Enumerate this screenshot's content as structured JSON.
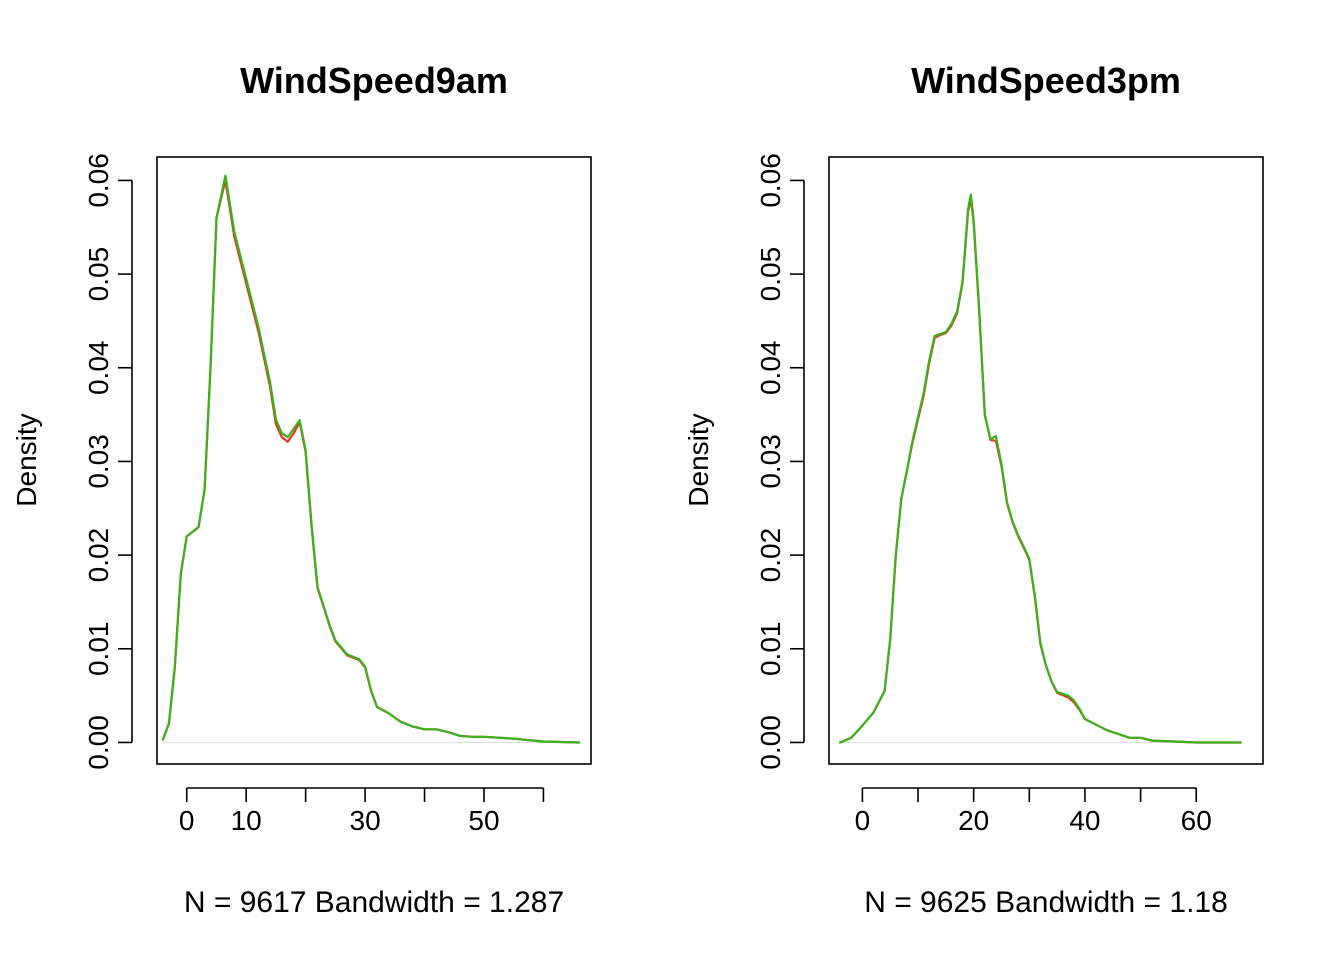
{
  "chart_data": [
    {
      "type": "line",
      "title": "WindSpeed9am",
      "subtitle": "N = 9617   Bandwidth = 1.287",
      "ylabel": "Density",
      "xlim": [
        -5,
        68
      ],
      "ylim": [
        -0.0023,
        0.0625
      ],
      "x_ticks": [
        0,
        10,
        30,
        50
      ],
      "x_tick_marks": [
        0,
        10,
        20,
        30,
        40,
        50,
        60
      ],
      "y_ticks": [
        "0.00",
        "0.01",
        "0.02",
        "0.03",
        "0.04",
        "0.05",
        "0.06"
      ],
      "series": [
        {
          "color": "#e8341c",
          "points": [
            [
              -4,
              0.0003
            ],
            [
              -3,
              0.002
            ],
            [
              -2,
              0.008
            ],
            [
              -1,
              0.018
            ],
            [
              0,
              0.022
            ],
            [
              1,
              0.0225
            ],
            [
              2,
              0.023
            ],
            [
              3,
              0.027
            ],
            [
              4,
              0.04
            ],
            [
              5,
              0.056
            ],
            [
              6.5,
              0.06
            ],
            [
              8,
              0.054
            ],
            [
              10,
              0.049
            ],
            [
              12,
              0.044
            ],
            [
              14,
              0.038
            ],
            [
              15,
              0.034
            ],
            [
              16,
              0.0326
            ],
            [
              17,
              0.0321
            ],
            [
              18,
              0.033
            ],
            [
              19,
              0.0342
            ],
            [
              20,
              0.031
            ],
            [
              21,
              0.023
            ],
            [
              22,
              0.0165
            ],
            [
              23,
              0.0145
            ],
            [
              24,
              0.0125
            ],
            [
              25,
              0.0108
            ],
            [
              27,
              0.0093
            ],
            [
              29,
              0.0088
            ],
            [
              30,
              0.008
            ],
            [
              31,
              0.0055
            ],
            [
              32,
              0.0038
            ],
            [
              34,
              0.0031
            ],
            [
              36,
              0.0022
            ],
            [
              38,
              0.0017
            ],
            [
              40,
              0.0014
            ],
            [
              42,
              0.0014
            ],
            [
              44,
              0.0011
            ],
            [
              46,
              0.0007
            ],
            [
              48,
              0.0006
            ],
            [
              50,
              0.0006
            ],
            [
              55,
              0.0004
            ],
            [
              60,
              0.0001
            ],
            [
              66,
              0.0
            ]
          ]
        },
        {
          "color": "#39b21e",
          "points": [
            [
              -4,
              0.0003
            ],
            [
              -3,
              0.002
            ],
            [
              -2,
              0.008
            ],
            [
              -1,
              0.018
            ],
            [
              0,
              0.022
            ],
            [
              1,
              0.0225
            ],
            [
              2,
              0.023
            ],
            [
              3,
              0.027
            ],
            [
              4,
              0.04
            ],
            [
              5,
              0.056
            ],
            [
              6.5,
              0.0605
            ],
            [
              8,
              0.0545
            ],
            [
              10,
              0.0495
            ],
            [
              12,
              0.0445
            ],
            [
              14,
              0.0385
            ],
            [
              15,
              0.0345
            ],
            [
              16,
              0.033
            ],
            [
              17,
              0.0326
            ],
            [
              18,
              0.0335
            ],
            [
              19,
              0.0344
            ],
            [
              20,
              0.0312
            ],
            [
              21,
              0.0232
            ],
            [
              22,
              0.0166
            ],
            [
              23,
              0.0146
            ],
            [
              24,
              0.0126
            ],
            [
              25,
              0.0109
            ],
            [
              27,
              0.0094
            ],
            [
              29,
              0.0089
            ],
            [
              30,
              0.0081
            ],
            [
              31,
              0.0056
            ],
            [
              32,
              0.0038
            ],
            [
              34,
              0.0031
            ],
            [
              36,
              0.0022
            ],
            [
              38,
              0.0017
            ],
            [
              40,
              0.0014
            ],
            [
              42,
              0.0014
            ],
            [
              44,
              0.0011
            ],
            [
              46,
              0.0007
            ],
            [
              48,
              0.0006
            ],
            [
              50,
              0.0006
            ],
            [
              55,
              0.0004
            ],
            [
              60,
              0.0001
            ],
            [
              66,
              0.0
            ]
          ]
        }
      ]
    },
    {
      "type": "line",
      "title": "WindSpeed3pm",
      "subtitle": "N = 9625   Bandwidth = 1.18",
      "ylabel": "Density",
      "xlim": [
        -6,
        72
      ],
      "ylim": [
        -0.0023,
        0.0625
      ],
      "x_ticks": [
        0,
        20,
        40,
        60
      ],
      "x_tick_marks": [
        0,
        10,
        20,
        30,
        40,
        50,
        60
      ],
      "y_ticks": [
        "0.00",
        "0.01",
        "0.02",
        "0.03",
        "0.04",
        "0.05",
        "0.06"
      ],
      "series": [
        {
          "color": "#e8341c",
          "points": [
            [
              -4,
              0.0
            ],
            [
              -2,
              0.0005
            ],
            [
              0,
              0.0018
            ],
            [
              2,
              0.0032
            ],
            [
              4,
              0.0055
            ],
            [
              5,
              0.011
            ],
            [
              6,
              0.02
            ],
            [
              7,
              0.026
            ],
            [
              8,
              0.029
            ],
            [
              9,
              0.032
            ],
            [
              10,
              0.0345
            ],
            [
              11,
              0.037
            ],
            [
              12,
              0.0405
            ],
            [
              13,
              0.0432
            ],
            [
              14,
              0.0435
            ],
            [
              15,
              0.0437
            ],
            [
              16,
              0.0445
            ],
            [
              17,
              0.0458
            ],
            [
              18,
              0.049
            ],
            [
              19,
              0.0567
            ],
            [
              19.5,
              0.058
            ],
            [
              20,
              0.0555
            ],
            [
              21,
              0.046
            ],
            [
              22,
              0.035
            ],
            [
              23,
              0.0323
            ],
            [
              24,
              0.0322
            ],
            [
              25,
              0.0295
            ],
            [
              26,
              0.0255
            ],
            [
              27,
              0.0235
            ],
            [
              28,
              0.022
            ],
            [
              29,
              0.0208
            ],
            [
              30,
              0.0195
            ],
            [
              31,
              0.0155
            ],
            [
              32,
              0.0105
            ],
            [
              33,
              0.0082
            ],
            [
              34,
              0.0065
            ],
            [
              35,
              0.0053
            ],
            [
              37,
              0.0048
            ],
            [
              38,
              0.0043
            ],
            [
              39,
              0.0035
            ],
            [
              40,
              0.0025
            ],
            [
              42,
              0.0019
            ],
            [
              44,
              0.0013
            ],
            [
              46,
              0.0009
            ],
            [
              48,
              0.0005
            ],
            [
              50,
              0.0005
            ],
            [
              52,
              0.0002
            ],
            [
              56,
              0.0001
            ],
            [
              60,
              0.0
            ],
            [
              68,
              0.0
            ]
          ]
        },
        {
          "color": "#39b21e",
          "points": [
            [
              -4,
              0.0
            ],
            [
              -2,
              0.0005
            ],
            [
              0,
              0.0018
            ],
            [
              2,
              0.0032
            ],
            [
              4,
              0.0055
            ],
            [
              5,
              0.011
            ],
            [
              6,
              0.02
            ],
            [
              7,
              0.026
            ],
            [
              8,
              0.029
            ],
            [
              9,
              0.0322
            ],
            [
              10,
              0.0347
            ],
            [
              11,
              0.0373
            ],
            [
              12,
              0.0408
            ],
            [
              13,
              0.0434
            ],
            [
              14,
              0.0436
            ],
            [
              15,
              0.0438
            ],
            [
              16,
              0.0447
            ],
            [
              17,
              0.046
            ],
            [
              18,
              0.0492
            ],
            [
              19,
              0.057
            ],
            [
              19.5,
              0.0585
            ],
            [
              20,
              0.0557
            ],
            [
              21,
              0.0462
            ],
            [
              22,
              0.035
            ],
            [
              23,
              0.0324
            ],
            [
              24,
              0.0327
            ],
            [
              25,
              0.0297
            ],
            [
              26,
              0.0256
            ],
            [
              27,
              0.0236
            ],
            [
              28,
              0.0221
            ],
            [
              29,
              0.0209
            ],
            [
              30,
              0.0196
            ],
            [
              31,
              0.0156
            ],
            [
              32,
              0.0106
            ],
            [
              33,
              0.0082
            ],
            [
              34,
              0.0065
            ],
            [
              35,
              0.0054
            ],
            [
              37,
              0.005
            ],
            [
              38,
              0.0045
            ],
            [
              39,
              0.0036
            ],
            [
              40,
              0.0025
            ],
            [
              42,
              0.0019
            ],
            [
              44,
              0.0013
            ],
            [
              46,
              0.0009
            ],
            [
              48,
              0.0005
            ],
            [
              50,
              0.0005
            ],
            [
              52,
              0.0002
            ],
            [
              56,
              0.0001
            ],
            [
              60,
              0.0
            ],
            [
              68,
              0.0
            ]
          ]
        }
      ]
    }
  ]
}
